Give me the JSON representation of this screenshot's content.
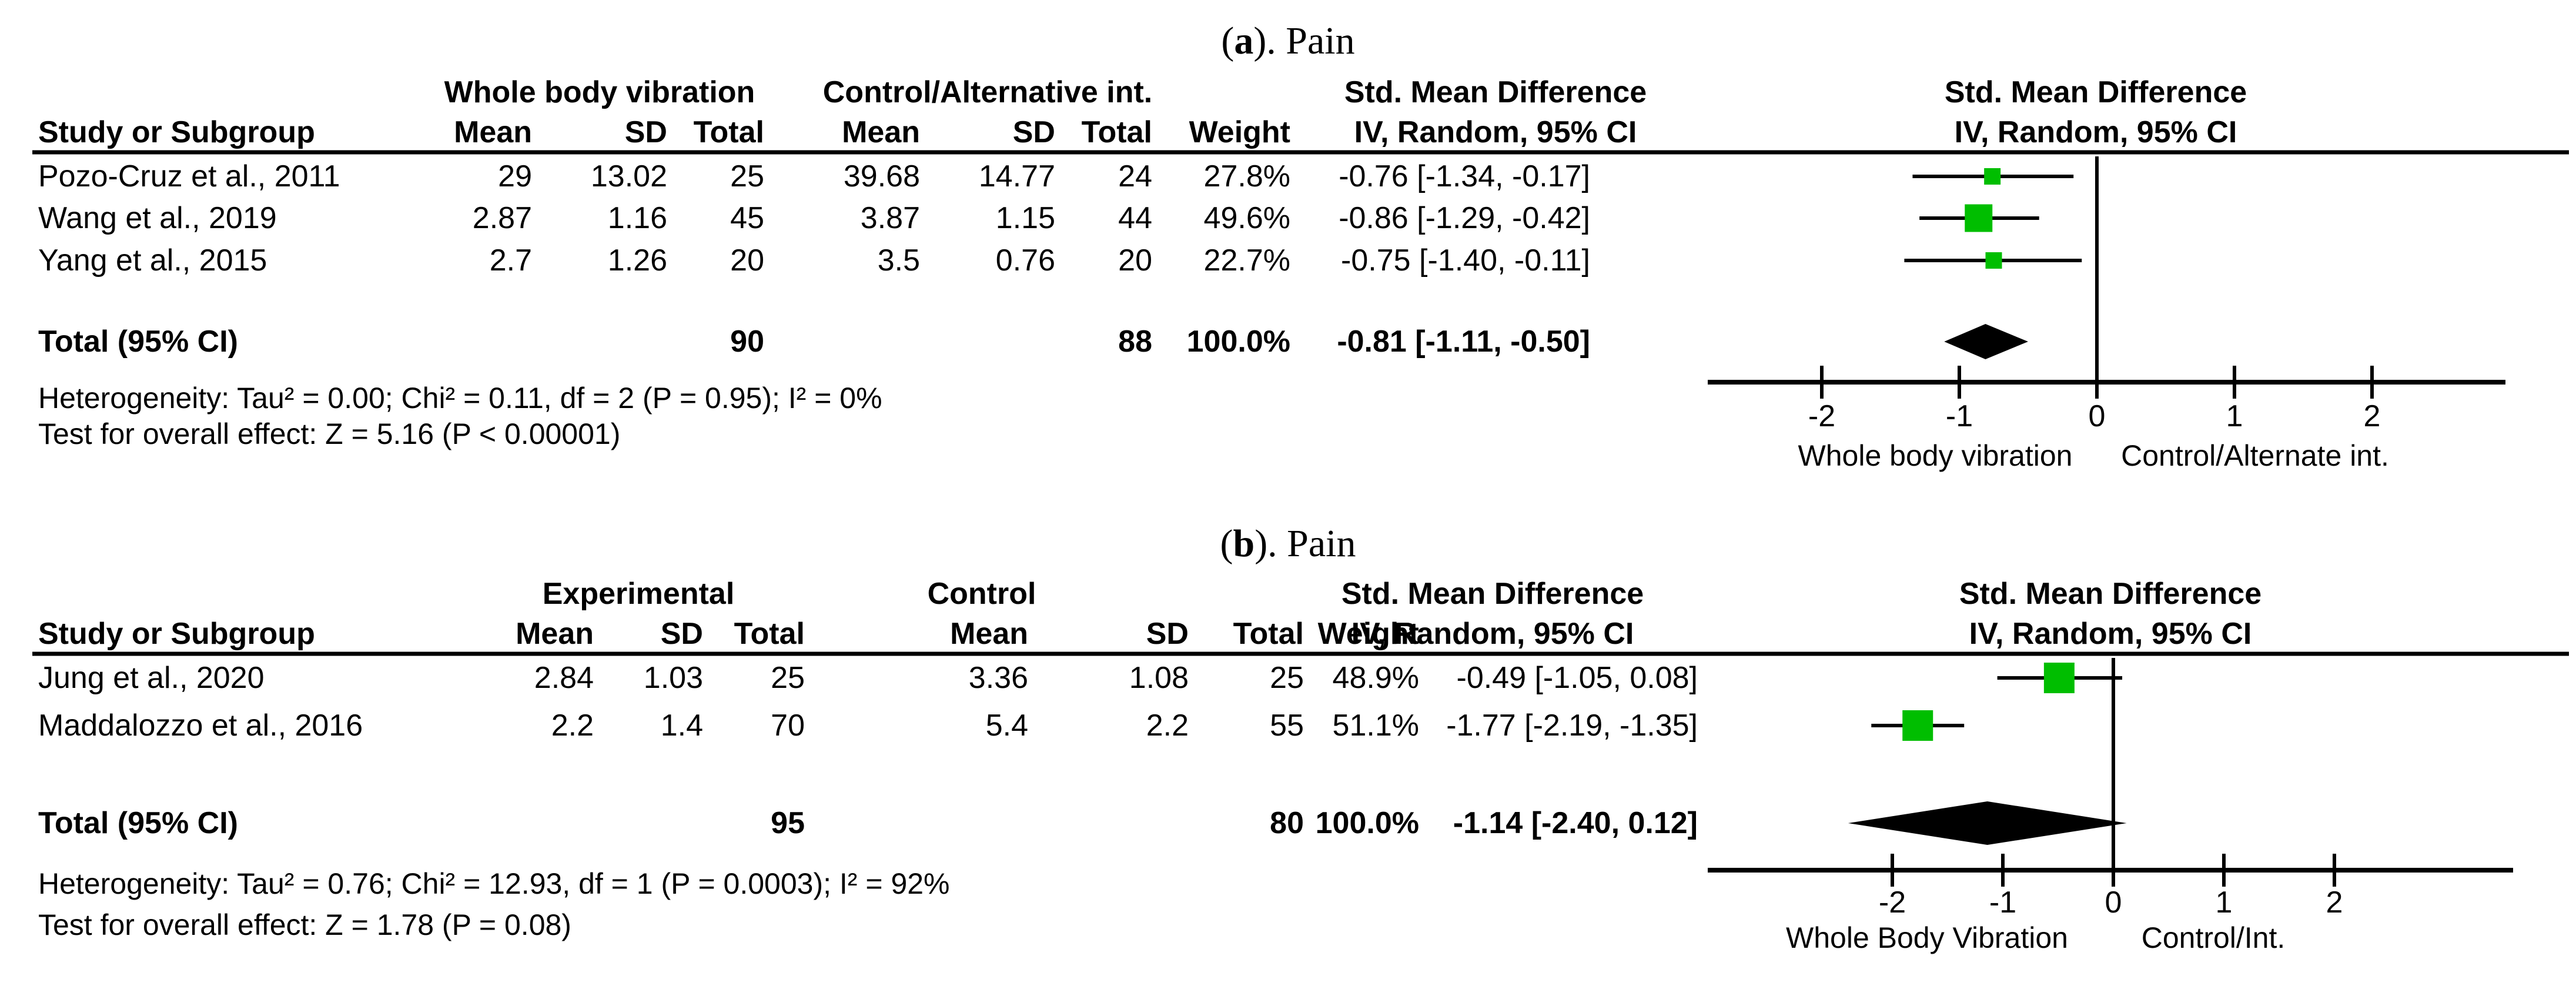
{
  "figure": {
    "background": "#ffffff",
    "text_color": "#000000",
    "marker_color": "#00be00",
    "line_color": "#000000"
  },
  "panels": [
    {
      "title": {
        "open": "(",
        "letter": "a",
        "rest": "). Pain"
      },
      "group_headers": {
        "experimental": "Whole body vibration",
        "control": "Control/Alternative int.",
        "smd_table": "Std. Mean Difference",
        "smd_plot": "Std. Mean Difference"
      },
      "col_headers": {
        "study": "Study or Subgroup",
        "mean": "Mean",
        "sd": "SD",
        "total": "Total",
        "weight": "Weight",
        "ci_method_table": "IV, Random, 95% CI",
        "ci_method_plot": "IV, Random, 95% CI"
      },
      "rows": [
        {
          "study": "Pozo-Cruz et al., 2011",
          "e_mean": "29",
          "e_sd": "13.02",
          "e_total": "25",
          "c_mean": "39.68",
          "c_sd": "14.77",
          "c_total": "24",
          "weight": "27.8%",
          "ci_text": "-0.76 [-1.34, -0.17]"
        },
        {
          "study": "Wang et al., 2019",
          "e_mean": "2.87",
          "e_sd": "1.16",
          "e_total": "45",
          "c_mean": "3.87",
          "c_sd": "1.15",
          "c_total": "44",
          "weight": "49.6%",
          "ci_text": "-0.86 [-1.29, -0.42]"
        },
        {
          "study": "Yang et al., 2015",
          "e_mean": "2.7",
          "e_sd": "1.26",
          "e_total": "20",
          "c_mean": "3.5",
          "c_sd": "0.76",
          "c_total": "20",
          "weight": "22.7%",
          "ci_text": "-0.75 [-1.40, -0.11]"
        }
      ],
      "total_row": {
        "label": "Total (95% CI)",
        "e_total": "90",
        "c_total": "88",
        "weight": "100.0%",
        "ci_text": "-0.81 [-1.11, -0.50]"
      },
      "heterogeneity": "Heterogeneity: Tau² = 0.00; Chi² = 0.11, df = 2 (P = 0.95); I² = 0%",
      "overall_test": "Test for overall effect: Z = 5.16 (P < 0.00001)"
    },
    {
      "title": {
        "open": "(",
        "letter": "b",
        "rest": "). Pain"
      },
      "group_headers": {
        "experimental": "Experimental",
        "control": "Control",
        "smd_table": "Std. Mean Difference",
        "smd_plot": "Std. Mean Difference"
      },
      "col_headers": {
        "study": "Study or Subgroup",
        "mean": "Mean",
        "sd": "SD",
        "total": "Total",
        "weight": "Weight",
        "ci_method_table": "IV, Random, 95% CI",
        "ci_method_plot": "IV, Random, 95% CI"
      },
      "rows": [
        {
          "study": "Jung et al., 2020",
          "e_mean": "2.84",
          "e_sd": "1.03",
          "e_total": "25",
          "c_mean": "3.36",
          "c_sd": "1.08",
          "c_total": "25",
          "weight": "48.9%",
          "ci_text": "-0.49 [-1.05, 0.08]"
        },
        {
          "study": "Maddalozzo et al., 2016",
          "e_mean": "2.2",
          "e_sd": "1.4",
          "e_total": "70",
          "c_mean": "5.4",
          "c_sd": "2.2",
          "c_total": "55",
          "weight": "51.1%",
          "ci_text": "-1.77 [-2.19, -1.35]"
        }
      ],
      "total_row": {
        "label": "Total (95% CI)",
        "e_total": "95",
        "c_total": "80",
        "weight": "100.0%",
        "ci_text": "-1.14 [-2.40, 0.12]"
      },
      "heterogeneity": "Heterogeneity: Tau² = 0.76; Chi² = 12.93, df = 1 (P = 0.0003); I² = 92%",
      "overall_test": "Test for overall effect: Z = 1.78 (P = 0.08)"
    }
  ],
  "chart_data": [
    {
      "type": "scatter",
      "subtype": "forest-plot",
      "title": "(a). Pain",
      "effect_measure": "Std. Mean Difference, IV, Random, 95% CI",
      "x_ticks": [
        -2,
        -1,
        0,
        1,
        2
      ],
      "xlim": [
        -2.85,
        3.0
      ],
      "xlabel_left": "Whole body vibration",
      "xlabel_right": "Control/Alternate int.",
      "studies": [
        {
          "name": "Pozo-Cruz et al., 2011",
          "smd": -0.76,
          "ci_low": -1.34,
          "ci_high": -0.17,
          "weight_pct": 27.8
        },
        {
          "name": "Wang et al., 2019",
          "smd": -0.86,
          "ci_low": -1.29,
          "ci_high": -0.42,
          "weight_pct": 49.6
        },
        {
          "name": "Yang et al., 2015",
          "smd": -0.75,
          "ci_low": -1.4,
          "ci_high": -0.11,
          "weight_pct": 22.7
        }
      ],
      "total": {
        "name": "Total (95% CI)",
        "smd": -0.81,
        "ci_low": -1.11,
        "ci_high": -0.5,
        "weight_pct": 100.0
      }
    },
    {
      "type": "scatter",
      "subtype": "forest-plot",
      "title": "(b). Pain",
      "effect_measure": "Std. Mean Difference, IV, Random, 95% CI",
      "x_ticks": [
        -2,
        -1,
        0,
        1,
        2
      ],
      "xlim": [
        -3.65,
        3.6
      ],
      "xlabel_left": "Whole Body Vibration",
      "xlabel_right": "Control/Int.",
      "studies": [
        {
          "name": "Jung et al., 2020",
          "smd": -0.49,
          "ci_low": -1.05,
          "ci_high": 0.08,
          "weight_pct": 48.9
        },
        {
          "name": "Maddalozzo et al., 2016",
          "smd": -1.77,
          "ci_low": -2.19,
          "ci_high": -1.35,
          "weight_pct": 51.1
        }
      ],
      "total": {
        "name": "Total (95% CI)",
        "smd": -1.14,
        "ci_low": -2.4,
        "ci_high": 0.12,
        "weight_pct": 100.0
      }
    }
  ]
}
